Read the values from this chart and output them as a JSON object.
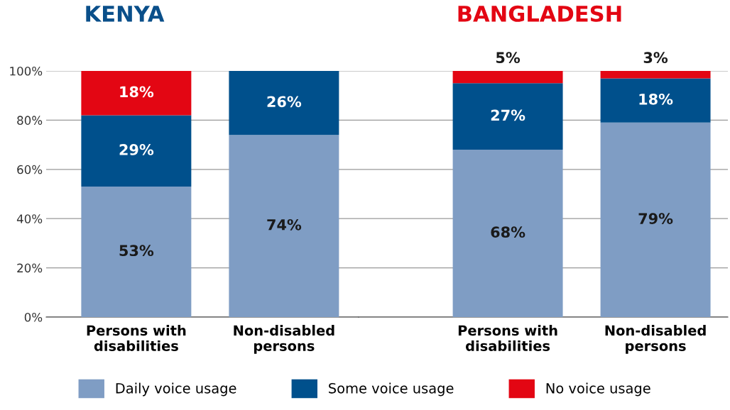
{
  "chart_data": [
    {
      "type": "bar",
      "title": "KENYA",
      "stacked": true,
      "categories": [
        "Persons with\ndisabilities",
        "Non-disabled\npersons"
      ],
      "ylim": [
        0,
        100
      ],
      "yticks": [
        {
          "value": 0,
          "label": "0%"
        },
        {
          "value": 20,
          "label": "20%"
        },
        {
          "value": 40,
          "label": "40%"
        },
        {
          "value": 60,
          "label": "60%"
        },
        {
          "value": 80,
          "label": "80%"
        },
        {
          "value": 100,
          "label": "100%"
        }
      ],
      "grid": "y",
      "legend": "bottom",
      "series": [
        {
          "name": "Daily voice usage",
          "color": "#7f9dc4",
          "values": [
            53,
            74
          ],
          "value_labels": [
            "53%",
            "74%"
          ]
        },
        {
          "name": "Some voice usage",
          "color": "#00508c",
          "values": [
            29,
            26
          ],
          "value_labels": [
            "29%",
            "26%"
          ]
        },
        {
          "name": "No voice usage",
          "color": "#e30613",
          "values": [
            18,
            null
          ],
          "value_labels": [
            "18%",
            null
          ]
        }
      ]
    },
    {
      "type": "bar",
      "title": "BANGLADESH",
      "stacked": true,
      "categories": [
        "Persons with\ndisabilities",
        "Non-disabled\npersons"
      ],
      "ylim": [
        0,
        100
      ],
      "yticks": [
        0,
        20,
        40,
        60,
        80,
        100
      ],
      "grid": "y",
      "tick_labels": "x",
      "series": [
        {
          "color": "#7f9dc4",
          "values": [
            68,
            79
          ],
          "value_labels": [
            "68%",
            "79%"
          ]
        },
        {
          "color": "#00508c",
          "values": [
            27,
            18
          ],
          "value_labels": [
            "27%",
            "18%"
          ]
        },
        {
          "color": "#e30613",
          "values": [
            5,
            3
          ],
          "value_labels": [
            "5%",
            "3%"
          ]
        }
      ]
    }
  ]
}
